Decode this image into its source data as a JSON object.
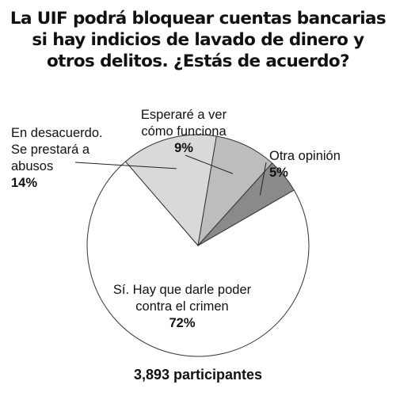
{
  "title_lines": [
    "La UIF podrá bloquear cuentas bancarias",
    "si hay indicios de lavado de dinero y",
    "otros delitos. ¿Estás de acuerdo?"
  ],
  "footer": "3,893 participantes",
  "colors": {
    "si": "#ffffff",
    "desacuerdo": "#d9d9d9",
    "esperare": "#bdbdbd",
    "otra": "#8a8a8a",
    "stroke": "#333333"
  },
  "chart_data": {
    "type": "pie",
    "title": "La UIF podrá bloquear cuentas bancarias si hay indicios de lavado de dinero y otros delitos. ¿Estás de acuerdo?",
    "slices": [
      {
        "key": "si",
        "label_lines": [
          "Sí. Hay que darle poder",
          "contra el crimen"
        ],
        "value": 72,
        "pct_label": "72%"
      },
      {
        "key": "desacuerdo",
        "label_lines": [
          "En desacuerdo.",
          "Se prestará a",
          "abusos"
        ],
        "value": 14,
        "pct_label": "14%"
      },
      {
        "key": "esperare",
        "label_lines": [
          "Esperaré a ver",
          "cómo funciona"
        ],
        "value": 9,
        "pct_label": "9%"
      },
      {
        "key": "otra",
        "label_lines": [
          "Otra opinión"
        ],
        "value": 5,
        "pct_label": "5%"
      }
    ],
    "total_participants": "3,893 participantes"
  }
}
